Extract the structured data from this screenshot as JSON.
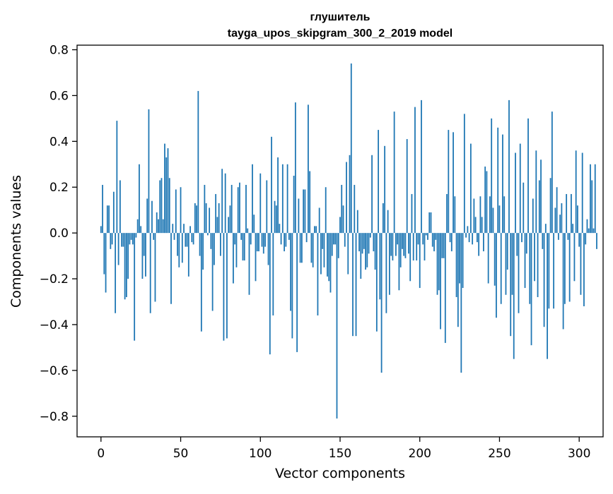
{
  "chart_data": {
    "type": "bar",
    "title": "глушитель",
    "subtitle": "tayga_upos_skipgram_300_2_2019 model",
    "xlabel": "Vector components",
    "ylabel": "Components values",
    "xlim": [
      -15,
      315
    ],
    "ylim": [
      -0.89,
      0.82
    ],
    "xticks": [
      0,
      50,
      100,
      150,
      200,
      250,
      300
    ],
    "xtick_labels": [
      "0",
      "50",
      "100",
      "150",
      "200",
      "250",
      "300"
    ],
    "yticks": [
      -0.8,
      -0.6,
      -0.4,
      -0.2,
      0.0,
      0.2,
      0.4,
      0.6,
      0.8
    ],
    "ytick_labels": [
      "−0.8",
      "−0.6",
      "−0.4",
      "−0.2",
      "0.0",
      "0.2",
      "0.4",
      "0.6",
      "0.8"
    ],
    "bar_color": "#1f77b4",
    "grid": false,
    "values": [
      0.03,
      0.21,
      -0.18,
      -0.26,
      0.12,
      0.12,
      -0.07,
      -0.05,
      0.18,
      -0.35,
      0.49,
      -0.14,
      0.23,
      -0.06,
      -0.06,
      -0.29,
      -0.28,
      -0.2,
      -0.05,
      -0.03,
      -0.05,
      -0.47,
      -0.02,
      0.06,
      0.3,
      0.03,
      -0.2,
      -0.1,
      -0.19,
      0.15,
      0.54,
      -0.35,
      0.14,
      -0.03,
      -0.3,
      0.09,
      0.06,
      0.23,
      0.24,
      0.06,
      0.39,
      0.33,
      0.37,
      0.24,
      -0.31,
      0.04,
      -0.03,
      0.19,
      -0.1,
      -0.15,
      0.2,
      -0.13,
      0.04,
      -0.06,
      -0.06,
      -0.19,
      0.03,
      -0.04,
      -0.05,
      0.13,
      0.12,
      0.62,
      -0.1,
      -0.43,
      -0.16,
      0.21,
      0.13,
      -0.01,
      0.11,
      -0.07,
      -0.34,
      -0.14,
      0.17,
      0.07,
      0.13,
      -0.1,
      0.28,
      -0.47,
      0.26,
      -0.46,
      0.07,
      0.12,
      0.21,
      -0.22,
      -0.05,
      -0.15,
      0.2,
      0.22,
      -0.03,
      -0.12,
      -0.12,
      0.21,
      0.02,
      -0.27,
      -0.05,
      0.3,
      0.08,
      -0.21,
      -0.08,
      -0.08,
      0.26,
      -0.06,
      -0.09,
      -0.06,
      0.23,
      -0.14,
      -0.53,
      0.42,
      -0.36,
      0.14,
      0.12,
      0.33,
      0.04,
      -0.05,
      0.3,
      -0.08,
      -0.06,
      0.3,
      -0.03,
      -0.34,
      -0.46,
      0.25,
      0.57,
      -0.52,
      0.15,
      -0.13,
      -0.13,
      0.19,
      0.19,
      -0.04,
      0.56,
      0.27,
      -0.13,
      -0.15,
      0.03,
      0.03,
      -0.36,
      0.11,
      -0.18,
      -0.07,
      -0.15,
      0.2,
      -0.19,
      -0.21,
      -0.26,
      -0.1,
      -0.05,
      -0.05,
      -0.81,
      -0.11,
      0.07,
      0.21,
      0.12,
      -0.06,
      0.31,
      -0.18,
      0.34,
      0.74,
      -0.45,
      0.21,
      -0.45,
      0.1,
      -0.08,
      -0.2,
      -0.09,
      -0.07,
      -0.16,
      -0.15,
      -0.09,
      -0.02,
      0.34,
      -0.08,
      -0.16,
      -0.43,
      0.45,
      -0.29,
      -0.61,
      0.13,
      0.38,
      -0.35,
      0.1,
      -0.27,
      -0.1,
      -0.12,
      0.53,
      -0.1,
      -0.05,
      -0.25,
      -0.15,
      -0.07,
      -0.1,
      -0.11,
      0.41,
      -0.09,
      -0.21,
      0.17,
      -0.12,
      0.55,
      -0.12,
      -0.05,
      -0.24,
      0.58,
      -0.05,
      -0.12,
      -0.01,
      -0.03,
      0.09,
      0.09,
      -0.06,
      -0.08,
      -0.03,
      -0.27,
      -0.25,
      -0.42,
      -0.11,
      -0.11,
      -0.48,
      0.17,
      0.45,
      -0.04,
      -0.08,
      0.44,
      0.16,
      -0.28,
      -0.41,
      -0.22,
      -0.61,
      -0.24,
      0.52,
      -0.02,
      0.03,
      -0.04,
      0.39,
      -0.05,
      0.15,
      0.07,
      -0.04,
      -0.1,
      0.16,
      0.07,
      -0.08,
      0.29,
      0.27,
      -0.22,
      0.16,
      0.5,
      0.11,
      -0.23,
      -0.37,
      0.46,
      0.12,
      -0.31,
      0.43,
      0.16,
      -0.27,
      -0.16,
      0.58,
      -0.45,
      -0.27,
      -0.55,
      0.35,
      -0.1,
      -0.35,
      0.39,
      -0.04,
      0.22,
      -0.24,
      -0.09,
      0.5,
      -0.31,
      -0.49,
      0.15,
      -0.21,
      0.36,
      -0.28,
      0.23,
      0.32,
      -0.07,
      -0.41,
      0.04,
      -0.55,
      -0.33,
      0.24,
      0.53,
      -0.33,
      0.11,
      0.2,
      -0.03,
      0.08,
      0.13,
      -0.42,
      -0.31,
      0.17,
      -0.03,
      -0.3,
      0.17,
      0.04,
      -0.21,
      0.36,
      0.12,
      -0.06,
      -0.27,
      0.35,
      -0.32,
      -0.05,
      0.06,
      0.02,
      0.3,
      0.23,
      0.02,
      0.3,
      -0.07
    ]
  }
}
